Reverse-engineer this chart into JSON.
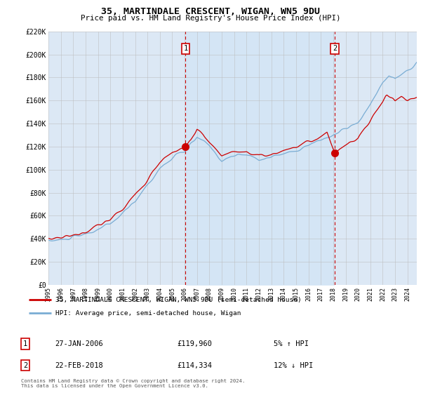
{
  "title": "35, MARTINDALE CRESCENT, WIGAN, WN5 9DU",
  "subtitle": "Price paid vs. HM Land Registry's House Price Index (HPI)",
  "legend_line1": "35, MARTINDALE CRESCENT, WIGAN, WN5 9DU (semi-detached house)",
  "legend_line2": "HPI: Average price, semi-detached house, Wigan",
  "transaction1_date": "27-JAN-2006",
  "transaction1_price": "£119,960",
  "transaction1_hpi": "5% ↑ HPI",
  "transaction1_year": 2006.07,
  "transaction1_value": 119960,
  "transaction2_date": "22-FEB-2018",
  "transaction2_price": "£114,334",
  "transaction2_hpi": "12% ↓ HPI",
  "transaction2_year": 2018.13,
  "transaction2_value": 114334,
  "footer": "Contains HM Land Registry data © Crown copyright and database right 2024.\nThis data is licensed under the Open Government Licence v3.0.",
  "xlim_start": 1995.0,
  "xlim_end": 2024.75,
  "ylim": [
    0,
    220000
  ],
  "yticks": [
    0,
    20000,
    40000,
    60000,
    80000,
    100000,
    120000,
    140000,
    160000,
    180000,
    200000,
    220000
  ],
  "ytick_labels": [
    "£0",
    "£20K",
    "£40K",
    "£60K",
    "£80K",
    "£100K",
    "£120K",
    "£140K",
    "£160K",
    "£180K",
    "£200K",
    "£220K"
  ],
  "xtick_years": [
    1995,
    1996,
    1997,
    1998,
    1999,
    2000,
    2001,
    2002,
    2003,
    2004,
    2005,
    2006,
    2007,
    2008,
    2009,
    2010,
    2011,
    2012,
    2013,
    2014,
    2015,
    2016,
    2017,
    2018,
    2019,
    2020,
    2021,
    2022,
    2023,
    2024
  ],
  "bg_color": "#dce8f5",
  "red_color": "#cc0000",
  "blue_color": "#7aadd4",
  "shade_color": "#d0e4f5",
  "dashed_color": "#cc0000",
  "grid_color": "#bbbbbb",
  "title_fontsize": 9,
  "subtitle_fontsize": 8
}
